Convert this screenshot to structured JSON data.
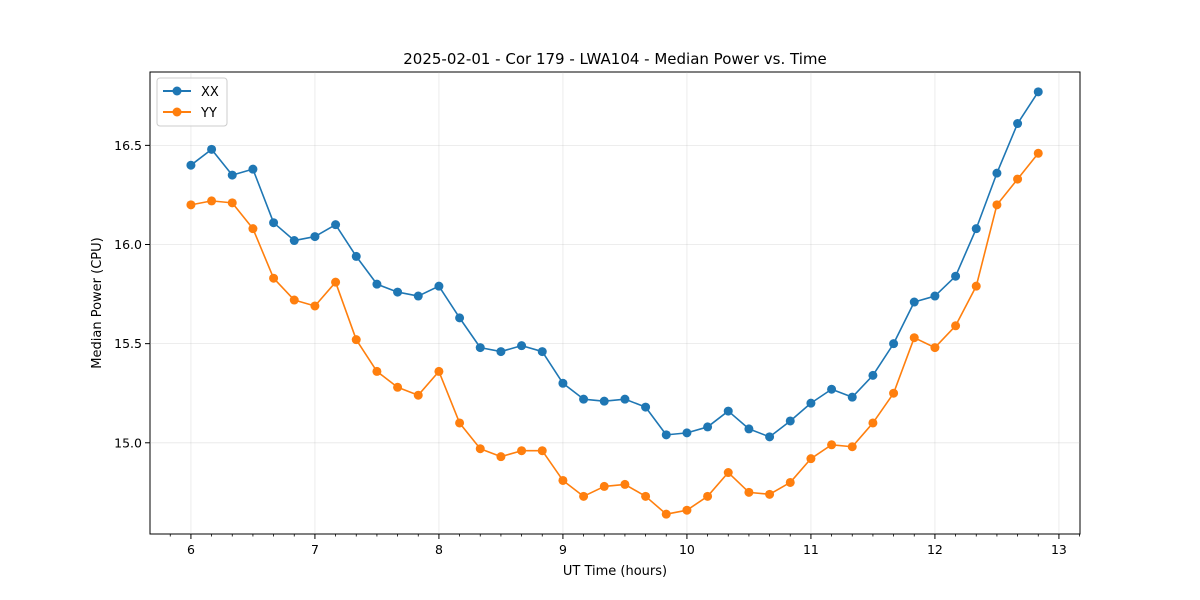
{
  "chart_data": {
    "type": "line",
    "title": "2025-02-01 - Cor 179 - LWA104 - Median Power vs. Time",
    "xlabel": "UT Time (hours)",
    "ylabel": "Median Power (CPU)",
    "xlim": [
      5.67,
      13.17
    ],
    "ylim": [
      14.54,
      16.87
    ],
    "x_ticks": [
      6,
      7,
      8,
      9,
      10,
      11,
      12,
      13
    ],
    "x_tick_labels": [
      "6",
      "7",
      "8",
      "9",
      "10",
      "11",
      "12",
      "13"
    ],
    "y_ticks": [
      15.0,
      15.5,
      16.0,
      16.5
    ],
    "y_tick_labels": [
      "15.0",
      "15.5",
      "16.0",
      "16.5"
    ],
    "grid": true,
    "legend_position": "top-left",
    "x": [
      6.0,
      6.1667,
      6.3333,
      6.5,
      6.6667,
      6.8333,
      7.0,
      7.1667,
      7.3333,
      7.5,
      7.6667,
      7.8333,
      8.0,
      8.1667,
      8.3333,
      8.5,
      8.6667,
      8.8333,
      9.0,
      9.1667,
      9.3333,
      9.5,
      9.6667,
      9.8333,
      10.0,
      10.1667,
      10.3333,
      10.5,
      10.6667,
      10.8333,
      11.0,
      11.1667,
      11.3333,
      11.5,
      11.6667,
      11.8333,
      12.0,
      12.1667,
      12.3333,
      12.5,
      12.6667,
      12.8333
    ],
    "series": [
      {
        "name": "XX",
        "color": "#1f77b4",
        "values": [
          16.4,
          16.48,
          16.35,
          16.38,
          16.11,
          16.02,
          16.04,
          16.1,
          15.94,
          15.8,
          15.76,
          15.74,
          15.79,
          15.63,
          15.48,
          15.46,
          15.49,
          15.46,
          15.3,
          15.22,
          15.21,
          15.22,
          15.18,
          15.04,
          15.05,
          15.08,
          15.16,
          15.07,
          15.03,
          15.11,
          15.2,
          15.27,
          15.23,
          15.34,
          15.5,
          15.71,
          15.74,
          15.84,
          16.08,
          16.36,
          16.61,
          16.77
        ]
      },
      {
        "name": "YY",
        "color": "#ff7f0e",
        "values": [
          16.2,
          16.22,
          16.21,
          16.08,
          15.83,
          15.72,
          15.69,
          15.81,
          15.52,
          15.36,
          15.28,
          15.24,
          15.36,
          15.1,
          14.97,
          14.93,
          14.96,
          14.96,
          14.81,
          14.73,
          14.78,
          14.79,
          14.73,
          14.64,
          14.66,
          14.73,
          14.85,
          14.75,
          14.74,
          14.8,
          14.92,
          14.99,
          14.98,
          15.1,
          15.25,
          15.53,
          15.48,
          15.59,
          15.79,
          16.2,
          16.33,
          16.46
        ]
      }
    ]
  }
}
